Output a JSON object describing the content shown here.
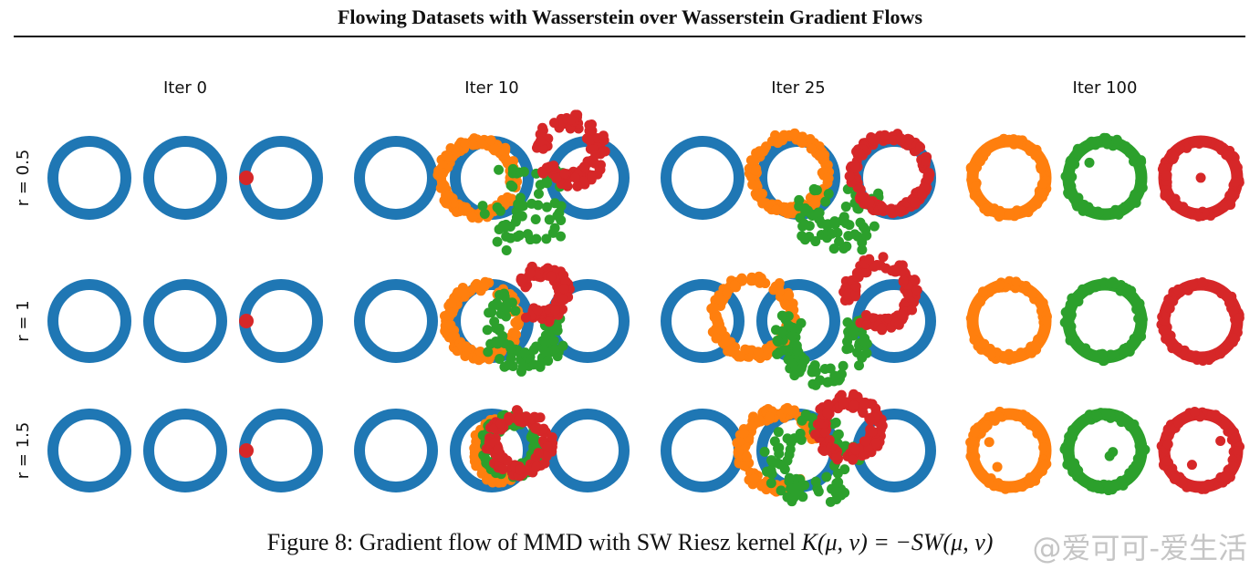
{
  "paper": {
    "running_title": "Flowing Datasets with Wasserstein over Wasserstein Gradient Flows",
    "caption_label": "Figure 8:",
    "caption_text": "Gradient flow of MMD with SW Riesz kernel",
    "caption_math": "K(μ, ν) = −SW",
    "caption_math_tail": "(μ, ν)",
    "watermark": "@爱可可-爱生活"
  },
  "figure": {
    "columns": [
      "Iter 0",
      "Iter 10",
      "Iter 25",
      "Iter 100"
    ],
    "rows": [
      "r = 0.5",
      "r = 1",
      "r = 1.5"
    ],
    "colors": {
      "target": "#1f77b4",
      "class_1": "#ff7f0e",
      "class_2": "#2ca02c",
      "class_3": "#d62728"
    }
  }
}
